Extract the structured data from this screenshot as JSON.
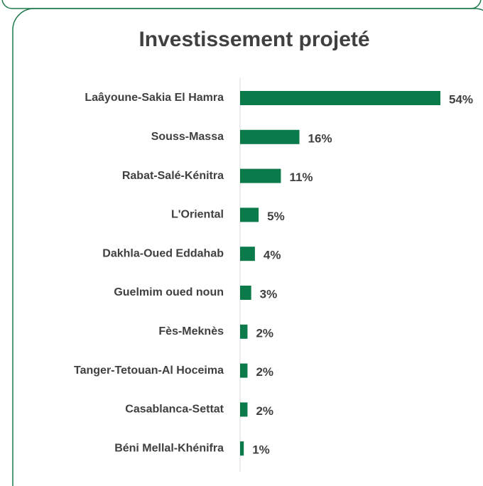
{
  "chart_data": {
    "type": "barh",
    "title": "Investissement  projeté",
    "categories": [
      "Laâyoune-Sakia El Hamra",
      "Souss-Massa",
      "Rabat-Salé-Kénitra",
      "L'Oriental",
      "Dakhla-Oued Eddahab",
      "Guelmim oued noun",
      "Fès-Meknès",
      "Tanger-Tetouan-Al Hoceima",
      "Casablanca-Settat",
      "Béni Mellal-Khénifra"
    ],
    "values": [
      54,
      16,
      11,
      5,
      4,
      3,
      2,
      2,
      2,
      1
    ],
    "value_labels": [
      "54%",
      "16%",
      "11%",
      "5%",
      "4%",
      "3%",
      "2%",
      "2%",
      "2%",
      "1%"
    ],
    "color": "#0b7a4b"
  }
}
